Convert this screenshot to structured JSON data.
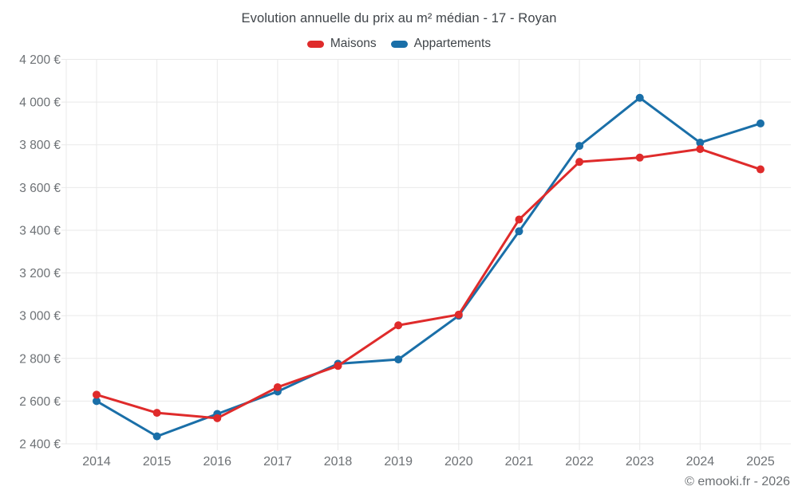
{
  "header": {
    "title": "Evolution annuelle du prix au m² médian - 17 - Royan"
  },
  "legend": {
    "items": [
      {
        "label": "Maisons",
        "color": "#df2b2b"
      },
      {
        "label": "Appartements",
        "color": "#1a6fa8"
      }
    ]
  },
  "footer": {
    "credit": "© emooki.fr - 2026"
  },
  "chart_data": {
    "type": "line",
    "title": "Evolution annuelle du prix au m² médian - 17 - Royan",
    "categories": [
      "2014",
      "2015",
      "2016",
      "2017",
      "2018",
      "2019",
      "2020",
      "2021",
      "2022",
      "2023",
      "2024",
      "2025"
    ],
    "series": [
      {
        "name": "Maisons",
        "color": "#df2b2b",
        "values": [
          2630,
          2545,
          2520,
          2665,
          2765,
          2955,
          3005,
          3450,
          3720,
          3740,
          3780,
          3685
        ]
      },
      {
        "name": "Appartements",
        "color": "#1a6fa8",
        "values": [
          2600,
          2435,
          2540,
          2645,
          2775,
          2795,
          3000,
          3395,
          3795,
          4020,
          3810,
          3900
        ]
      }
    ],
    "xlabel": "",
    "ylabel": "",
    "ylim": [
      2400,
      4200
    ],
    "y_ticks": [
      2400,
      2600,
      2800,
      3000,
      3200,
      3400,
      3600,
      3800,
      4000,
      4200
    ],
    "y_tick_labels": [
      "2 400 €",
      "2 600 €",
      "2 800 €",
      "3 000 €",
      "3 200 €",
      "3 400 €",
      "3 600 €",
      "3 800 €",
      "4 000 €",
      "4 200 €"
    ],
    "grid": true,
    "legend_position": "top",
    "styles": {
      "grid_color": "#e9e9e9",
      "tick_label_color": "#6d7175",
      "line_width": 3,
      "marker_radius": 5
    }
  }
}
